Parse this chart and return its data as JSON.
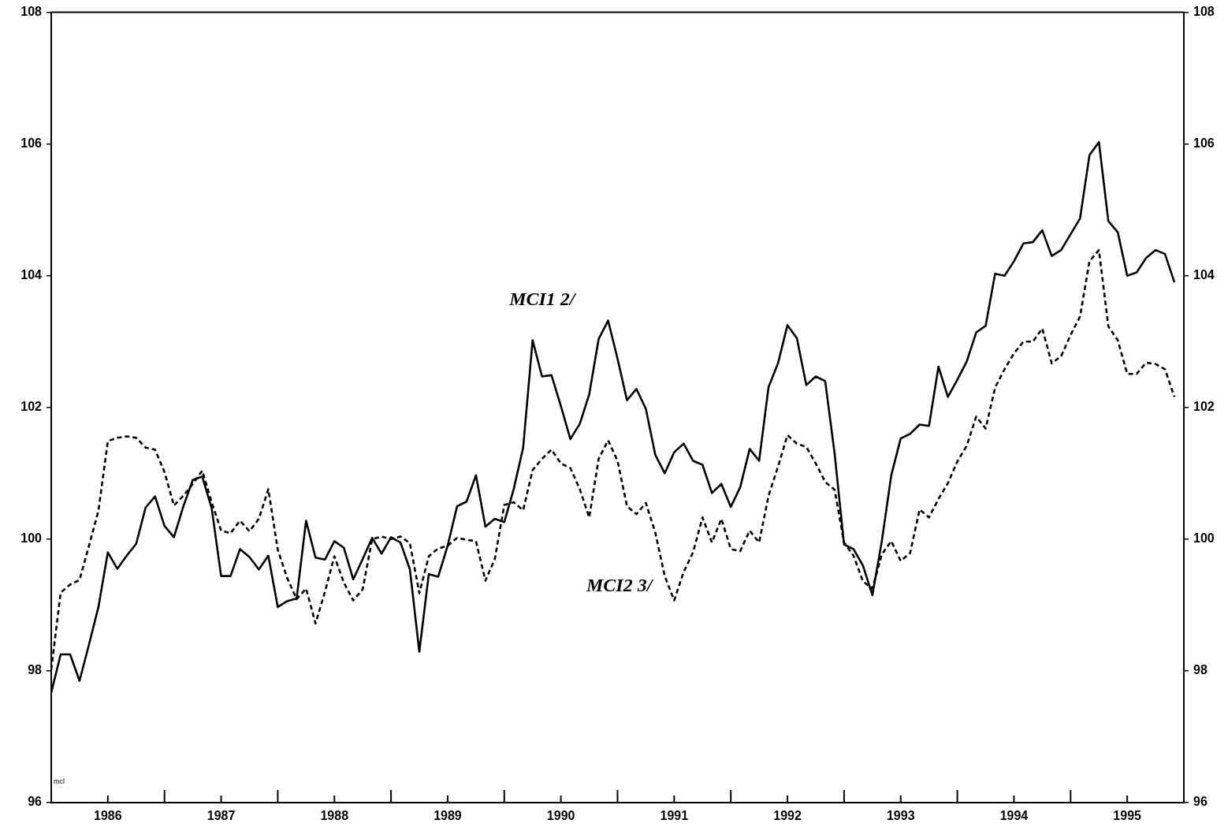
{
  "chart_data": {
    "type": "line",
    "x": [
      "1986-01",
      "1986-02",
      "1986-03",
      "1986-04",
      "1986-05",
      "1986-06",
      "1986-07",
      "1986-08",
      "1986-09",
      "1986-10",
      "1986-11",
      "1986-12",
      "1987-01",
      "1987-02",
      "1987-03",
      "1987-04",
      "1987-05",
      "1987-06",
      "1987-07",
      "1987-08",
      "1987-09",
      "1987-10",
      "1987-11",
      "1987-12",
      "1988-01",
      "1988-02",
      "1988-03",
      "1988-04",
      "1988-05",
      "1988-06",
      "1988-07",
      "1988-08",
      "1988-09",
      "1988-10",
      "1988-11",
      "1988-12",
      "1989-01",
      "1989-02",
      "1989-03",
      "1989-04",
      "1989-05",
      "1989-06",
      "1989-07",
      "1989-08",
      "1989-09",
      "1989-10",
      "1989-11",
      "1989-12",
      "1990-01",
      "1990-02",
      "1990-03",
      "1990-04",
      "1990-05",
      "1990-06",
      "1990-07",
      "1990-08",
      "1990-09",
      "1990-10",
      "1990-11",
      "1990-12",
      "1991-01",
      "1991-02",
      "1991-03",
      "1991-04",
      "1991-05",
      "1991-06",
      "1991-07",
      "1991-08",
      "1991-09",
      "1991-10",
      "1991-11",
      "1991-12",
      "1992-01",
      "1992-02",
      "1992-03",
      "1992-04",
      "1992-05",
      "1992-06",
      "1992-07",
      "1992-08",
      "1992-09",
      "1992-10",
      "1992-11",
      "1992-12",
      "1993-01",
      "1993-02",
      "1993-03",
      "1993-04",
      "1993-05",
      "1993-06",
      "1993-07",
      "1993-08",
      "1993-09",
      "1993-10",
      "1993-11",
      "1993-12",
      "1994-01",
      "1994-02",
      "1994-03",
      "1994-04",
      "1994-05",
      "1994-06",
      "1994-07",
      "1994-08",
      "1994-09",
      "1994-10",
      "1994-11",
      "1994-12",
      "1995-01",
      "1995-02",
      "1995-03",
      "1995-04",
      "1995-05",
      "1995-06",
      "1995-07",
      "1995-08",
      "1995-09",
      "1995-10",
      "1995-11",
      "1995-12"
    ],
    "series": [
      {
        "name": "MCI1 2/",
        "color": "#000000",
        "line_style": "solid",
        "values": [
          97.67,
          98.25,
          98.25,
          97.85,
          98.4,
          98.97,
          99.8,
          99.55,
          99.75,
          99.93,
          100.48,
          100.65,
          100.2,
          100.03,
          100.5,
          100.9,
          100.95,
          100.47,
          99.44,
          99.44,
          99.85,
          99.73,
          99.54,
          99.75,
          98.97,
          99.06,
          99.1,
          100.28,
          99.72,
          99.69,
          99.97,
          99.87,
          99.39,
          99.7,
          100.02,
          99.78,
          100.03,
          99.95,
          99.54,
          98.29,
          99.47,
          99.43,
          99.9,
          100.5,
          100.57,
          100.97,
          100.19,
          100.31,
          100.26,
          100.76,
          101.39,
          103.02,
          102.47,
          102.49,
          102.02,
          101.52,
          101.75,
          102.2,
          103.04,
          103.32,
          102.74,
          102.11,
          102.28,
          101.98,
          101.28,
          101.0,
          101.32,
          101.45,
          101.19,
          101.13,
          100.7,
          100.84,
          100.49,
          100.79,
          101.37,
          101.19,
          102.31,
          102.67,
          103.25,
          103.05,
          102.34,
          102.47,
          102.4,
          101.3,
          99.92,
          99.85,
          99.6,
          99.15,
          99.97,
          100.97,
          101.53,
          101.6,
          101.74,
          101.72,
          102.62,
          102.16,
          102.42,
          102.7,
          103.14,
          103.24,
          104.03,
          104.0,
          104.22,
          104.49,
          104.51,
          104.69,
          104.3,
          104.39,
          104.63,
          104.87,
          105.83,
          106.03,
          104.83,
          104.66,
          104.0,
          104.05,
          104.27,
          104.39,
          104.33,
          103.9
        ]
      },
      {
        "name": "MCI2 3/",
        "color": "#000000",
        "line_style": "dashed",
        "values": [
          98.02,
          99.19,
          99.31,
          99.38,
          99.9,
          100.43,
          101.49,
          101.54,
          101.56,
          101.54,
          101.39,
          101.36,
          101.02,
          100.51,
          100.66,
          100.84,
          101.04,
          100.56,
          100.13,
          100.09,
          100.28,
          100.12,
          100.31,
          100.76,
          99.84,
          99.41,
          99.09,
          99.25,
          98.72,
          99.2,
          99.74,
          99.34,
          99.07,
          99.24,
          100.0,
          100.04,
          100.0,
          100.04,
          99.94,
          99.18,
          99.74,
          99.86,
          99.9,
          100.02,
          99.99,
          99.97,
          99.37,
          99.7,
          100.52,
          100.56,
          100.44,
          101.05,
          101.22,
          101.36,
          101.15,
          101.08,
          100.76,
          100.33,
          101.22,
          101.5,
          101.19,
          100.5,
          100.38,
          100.55,
          100.1,
          99.44,
          99.07,
          99.5,
          99.8,
          100.33,
          99.95,
          100.31,
          99.85,
          99.82,
          100.13,
          99.95,
          100.66,
          101.1,
          101.58,
          101.45,
          101.4,
          101.15,
          100.87,
          100.75,
          99.95,
          99.75,
          99.36,
          99.25,
          99.77,
          99.97,
          99.67,
          99.79,
          100.45,
          100.33,
          100.61,
          100.85,
          101.18,
          101.42,
          101.86,
          101.68,
          102.3,
          102.58,
          102.82,
          103.0,
          103.0,
          103.2,
          102.67,
          102.78,
          103.1,
          103.38,
          104.22,
          104.39,
          103.23,
          103.02,
          102.51,
          102.51,
          102.68,
          102.66,
          102.58,
          102.16
        ]
      }
    ],
    "xlim": [
      "1986-01",
      "1996-01"
    ],
    "xticks": [
      {
        "value": "1986-07",
        "label": "1986"
      },
      {
        "value": "1987-01",
        "label": null
      },
      {
        "value": "1987-07",
        "label": "1987"
      },
      {
        "value": "1988-01",
        "label": null
      },
      {
        "value": "1988-07",
        "label": "1988"
      },
      {
        "value": "1989-01",
        "label": null
      },
      {
        "value": "1989-07",
        "label": "1989"
      },
      {
        "value": "1990-01",
        "label": null
      },
      {
        "value": "1990-07",
        "label": "1990"
      },
      {
        "value": "1991-01",
        "label": null
      },
      {
        "value": "1991-07",
        "label": "1991"
      },
      {
        "value": "1992-01",
        "label": null
      },
      {
        "value": "1992-07",
        "label": "1992"
      },
      {
        "value": "1993-01",
        "label": null
      },
      {
        "value": "1993-07",
        "label": "1993"
      },
      {
        "value": "1994-01",
        "label": null
      },
      {
        "value": "1994-07",
        "label": "1994"
      },
      {
        "value": "1995-01",
        "label": null
      },
      {
        "value": "1995-07",
        "label": "1995"
      }
    ],
    "ylim": [
      96,
      108
    ],
    "yticks": [
      96,
      98,
      100,
      102,
      104,
      106,
      108
    ],
    "y2lim": [
      96,
      108
    ],
    "y2ticks": [
      96,
      98,
      100,
      102,
      104,
      106,
      108
    ],
    "annotations": [
      "mcl"
    ],
    "legend": false,
    "grid": false,
    "marker": "none"
  }
}
